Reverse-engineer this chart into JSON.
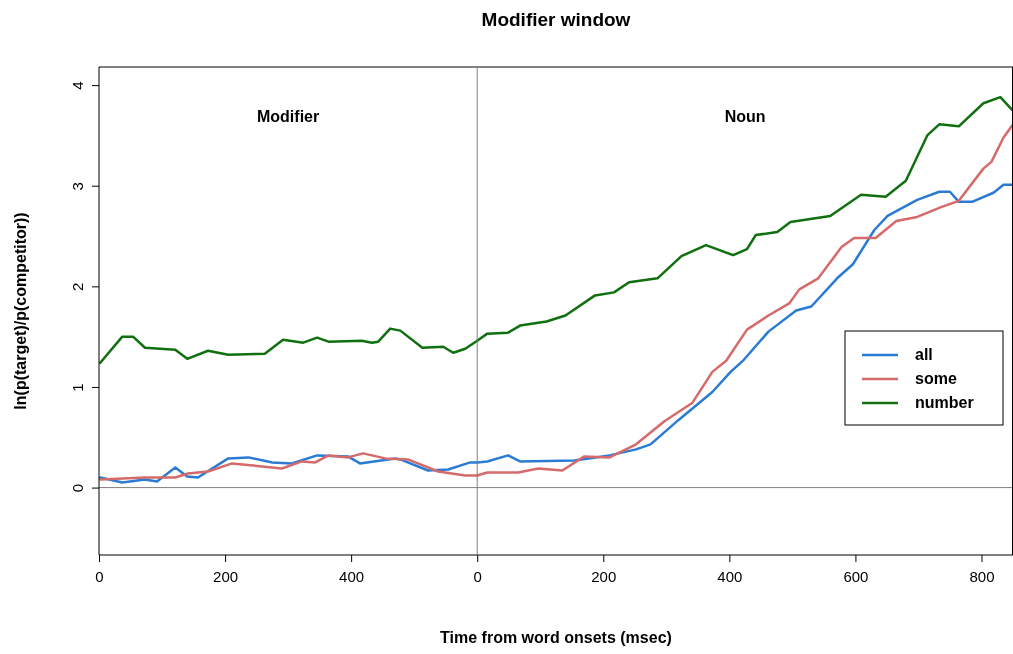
{
  "chart_data": [
    {
      "type": "line",
      "ylabel": "ln(p(target)/p(competitor))",
      "xlim": [
        0,
        600
      ],
      "ylim": [
        -0.67,
        4.18
      ],
      "xticks": [
        0,
        200,
        400
      ],
      "yticks": [
        0,
        1,
        2,
        3,
        4
      ],
      "grid": false,
      "line_style": "solid",
      "marker": "none",
      "ref_lines": [
        {
          "axis": "y",
          "value": 0,
          "color": "#808080"
        }
      ],
      "annotations": [
        "Modifier"
      ],
      "series": [
        {
          "color": "#2b7bd4",
          "x": [
            2,
            37,
            73,
            92,
            121,
            140,
            157,
            205,
            237,
            275,
            306,
            346,
            395,
            414,
            470,
            478,
            522,
            554,
            589,
            600
          ],
          "values": [
            0.1,
            0.05,
            0.08,
            0.06,
            0.2,
            0.11,
            0.1,
            0.29,
            0.3,
            0.25,
            0.24,
            0.32,
            0.31,
            0.24,
            0.29,
            0.28,
            0.17,
            0.18,
            0.25,
            0.25
          ]
        },
        {
          "color": "#d66a6a",
          "x": [
            2,
            73,
            121,
            141,
            173,
            211,
            259,
            290,
            322,
            343,
            364,
            395,
            419,
            454,
            490,
            538,
            581,
            600
          ],
          "values": [
            0.08,
            0.1,
            0.1,
            0.14,
            0.16,
            0.24,
            0.21,
            0.19,
            0.26,
            0.25,
            0.32,
            0.3,
            0.34,
            0.29,
            0.28,
            0.16,
            0.12,
            0.12
          ]
        },
        {
          "color": "#107010",
          "x": [
            2,
            37,
            54,
            73,
            121,
            140,
            173,
            205,
            263,
            292,
            324,
            346,
            364,
            417,
            433,
            443,
            462,
            478,
            513,
            546,
            562,
            581,
            600
          ],
          "values": [
            1.24,
            1.5,
            1.5,
            1.39,
            1.37,
            1.28,
            1.36,
            1.32,
            1.33,
            1.47,
            1.44,
            1.49,
            1.45,
            1.46,
            1.44,
            1.45,
            1.58,
            1.56,
            1.39,
            1.4,
            1.34,
            1.38,
            1.46
          ]
        }
      ]
    },
    {
      "type": "line",
      "title": "Modifier window",
      "xlabel": "Time from word onsets (msec)",
      "xlim": [
        0,
        850
      ],
      "ylim": [
        -0.67,
        4.18
      ],
      "xticks": [
        0,
        200,
        400,
        600,
        800
      ],
      "tick_labels": "x",
      "grid": false,
      "legend": "right",
      "line_style": "solid",
      "marker": "none",
      "ref_lines": [
        {
          "axis": "y",
          "value": 0,
          "color": "#808080"
        }
      ],
      "annotations": [
        "Noun"
      ],
      "series": [
        {
          "name": "all",
          "color": "#2b7bd4",
          "x": [
            0,
            16,
            49,
            68,
            154,
            210,
            252,
            275,
            319,
            373,
            402,
            423,
            462,
            506,
            530,
            571,
            596,
            630,
            651,
            698,
            733,
            750,
            764,
            785,
            819,
            835,
            849
          ],
          "values": [
            0.25,
            0.26,
            0.32,
            0.26,
            0.27,
            0.32,
            0.38,
            0.43,
            0.67,
            0.95,
            1.15,
            1.27,
            1.55,
            1.76,
            1.8,
            2.08,
            2.22,
            2.56,
            2.7,
            2.86,
            2.94,
            2.94,
            2.84,
            2.84,
            2.93,
            3.01,
            3.01
          ]
        },
        {
          "name": "some",
          "color": "#d66a6a",
          "x": [
            0,
            16,
            65,
            97,
            135,
            170,
            210,
            252,
            297,
            341,
            373,
            395,
            428,
            462,
            495,
            511,
            541,
            578,
            598,
            632,
            665,
            698,
            737,
            764,
            803,
            816,
            835,
            849
          ],
          "values": [
            0.12,
            0.15,
            0.15,
            0.19,
            0.17,
            0.31,
            0.3,
            0.43,
            0.66,
            0.84,
            1.15,
            1.26,
            1.57,
            1.71,
            1.83,
            1.97,
            2.08,
            2.39,
            2.48,
            2.48,
            2.65,
            2.69,
            2.79,
            2.85,
            3.17,
            3.24,
            3.48,
            3.6
          ]
        },
        {
          "name": "number",
          "color": "#107010",
          "x": [
            0,
            16,
            49,
            68,
            110,
            140,
            187,
            217,
            241,
            286,
            324,
            363,
            406,
            428,
            442,
            476,
            497,
            560,
            609,
            648,
            680,
            714,
            733,
            764,
            803,
            830,
            849
          ],
          "values": [
            1.46,
            1.53,
            1.54,
            1.61,
            1.65,
            1.71,
            1.91,
            1.94,
            2.04,
            2.08,
            2.3,
            2.41,
            2.31,
            2.37,
            2.51,
            2.54,
            2.64,
            2.7,
            2.91,
            2.89,
            3.05,
            3.5,
            3.61,
            3.59,
            3.82,
            3.88,
            3.75
          ]
        }
      ]
    }
  ]
}
